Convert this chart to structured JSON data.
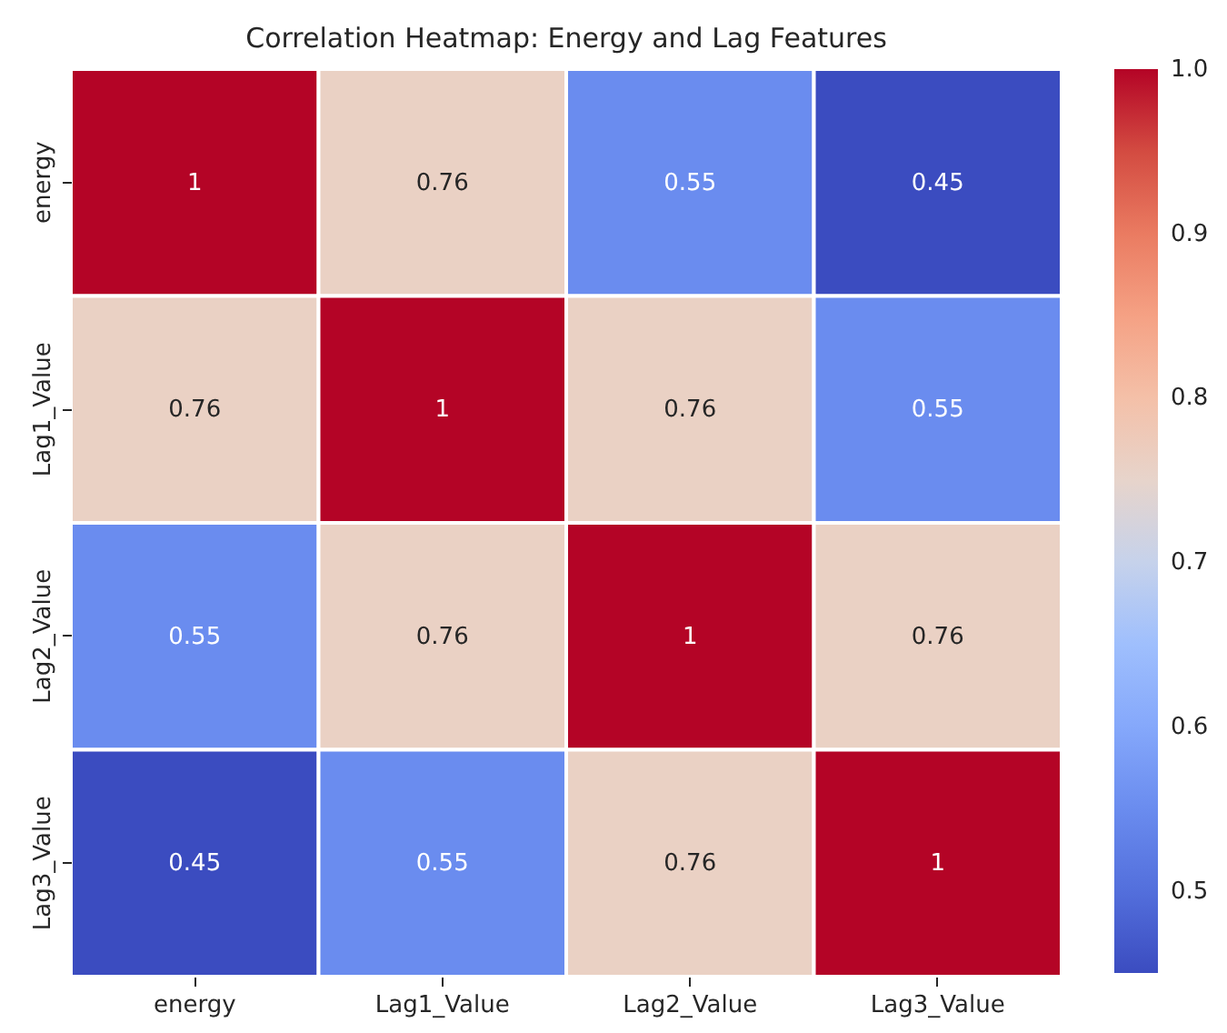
{
  "chart_data": {
    "type": "heatmap",
    "title": "Correlation Heatmap: Energy and Lag Features",
    "categories": [
      "energy",
      "Lag1_Value",
      "Lag2_Value",
      "Lag3_Value"
    ],
    "y_categories": [
      "energy",
      "Lag1_Value",
      "Lag2_Value",
      "Lag3_Value"
    ],
    "cells": [
      [
        1,
        0.76,
        0.55,
        0.45
      ],
      [
        0.76,
        1,
        0.76,
        0.55
      ],
      [
        0.55,
        0.76,
        1,
        0.76
      ],
      [
        0.45,
        0.55,
        0.76,
        1
      ]
    ],
    "clim": [
      0.45,
      1.0
    ],
    "cticks": [
      0.5,
      0.6,
      0.7,
      0.8,
      0.9,
      {
        "value": 1.0,
        "label": "1.0"
      }
    ],
    "data_labels": true
  }
}
